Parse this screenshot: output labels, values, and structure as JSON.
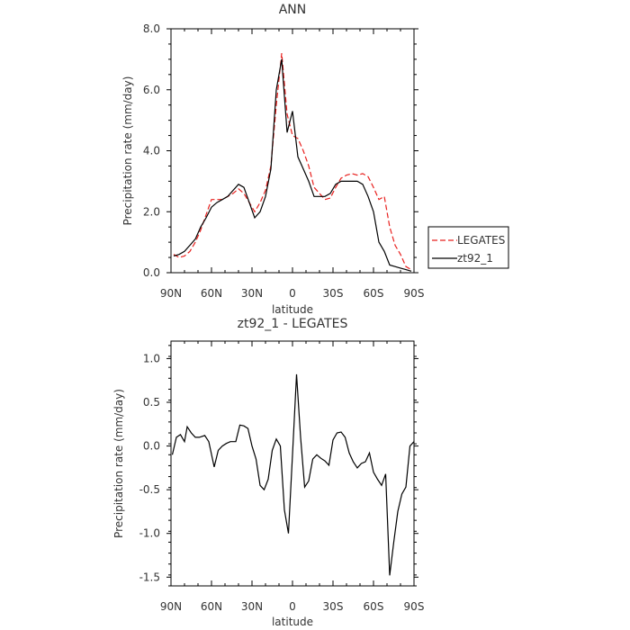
{
  "chart_data": [
    {
      "type": "line",
      "title": "ANN",
      "xlabel": "latitude",
      "ylabel": "Precipitation rate (mm/day)",
      "xlim": [
        90,
        -90
      ],
      "ylim": [
        0,
        8
      ],
      "xticks": [
        90,
        60,
        30,
        0,
        -30,
        -60,
        -90
      ],
      "xtick_labels": [
        "90N",
        "60N",
        "30N",
        "0",
        "30S",
        "60S",
        "90S"
      ],
      "yticks": [
        0,
        2,
        4,
        6,
        8
      ],
      "ytick_labels": [
        "0.0",
        "2.0",
        "4.0",
        "6.0",
        "8.0"
      ],
      "legend": "right",
      "series": [
        {
          "name": "LEGATES",
          "color": "#e8201e",
          "dash": "dashed",
          "x": [
            88,
            84,
            80,
            76,
            72,
            68,
            64,
            60,
            56,
            52,
            48,
            44,
            40,
            36,
            32,
            28,
            24,
            20,
            16,
            12,
            8,
            4,
            0,
            -4,
            -8,
            -12,
            -16,
            -20,
            -24,
            -28,
            -32,
            -36,
            -40,
            -44,
            -48,
            -52,
            -56,
            -60,
            -64,
            -68,
            -72,
            -76,
            -80,
            -84,
            -88
          ],
          "values": [
            0.6,
            0.5,
            0.55,
            0.7,
            1.0,
            1.4,
            1.9,
            2.4,
            2.4,
            2.4,
            2.5,
            2.6,
            2.75,
            2.6,
            2.3,
            2.0,
            2.3,
            2.7,
            3.5,
            5.5,
            7.2,
            5.2,
            4.5,
            4.4,
            4.0,
            3.5,
            2.8,
            2.6,
            2.4,
            2.45,
            2.8,
            3.1,
            3.2,
            3.25,
            3.2,
            3.25,
            3.15,
            2.8,
            2.4,
            2.5,
            1.5,
            0.9,
            0.6,
            0.2,
            0.1
          ]
        },
        {
          "name": "zt92_1",
          "color": "#000000",
          "dash": "solid",
          "x": [
            88,
            84,
            80,
            76,
            72,
            68,
            64,
            60,
            56,
            52,
            48,
            44,
            40,
            36,
            32,
            28,
            24,
            20,
            16,
            12,
            8,
            4,
            0,
            -4,
            -8,
            -12,
            -16,
            -20,
            -24,
            -28,
            -32,
            -36,
            -40,
            -44,
            -48,
            -52,
            -56,
            -60,
            -64,
            -68,
            -72,
            -76,
            -80,
            -84,
            -88
          ],
          "values": [
            0.55,
            0.6,
            0.7,
            0.9,
            1.1,
            1.5,
            1.8,
            2.15,
            2.3,
            2.4,
            2.5,
            2.7,
            2.9,
            2.8,
            2.3,
            1.8,
            2.0,
            2.5,
            3.4,
            6.0,
            7.0,
            4.6,
            5.3,
            3.8,
            3.4,
            3.0,
            2.5,
            2.5,
            2.5,
            2.6,
            2.9,
            3.0,
            3.0,
            3.0,
            3.0,
            2.9,
            2.5,
            2.0,
            1.0,
            0.7,
            0.25,
            0.2,
            0.15,
            0.1,
            0.05
          ]
        }
      ]
    },
    {
      "type": "line",
      "title": "zt92_1 - LEGATES",
      "xlabel": "latitude",
      "ylabel": "Precipitation rate (mm/day)",
      "xlim": [
        90,
        -90
      ],
      "ylim": [
        -1.6,
        1.2
      ],
      "xticks": [
        90,
        60,
        30,
        0,
        -30,
        -60,
        -90
      ],
      "xtick_labels": [
        "90N",
        "60N",
        "30N",
        "0",
        "30S",
        "60S",
        "90S"
      ],
      "yticks": [
        -1.5,
        -1.0,
        -0.5,
        0,
        0.5,
        1.0
      ],
      "ytick_labels": [
        "-1.5",
        "-1.0",
        "-0.5",
        "0.0",
        "0.5",
        "1.0"
      ],
      "series": [
        {
          "color": "#000000",
          "x": [
            89,
            86,
            83,
            80,
            78,
            75,
            72,
            69,
            65,
            62,
            58,
            55,
            52,
            49,
            46,
            42,
            39,
            36,
            33,
            30,
            27,
            24,
            21,
            18,
            15,
            12,
            9,
            6,
            3,
            0,
            -3,
            -6,
            -9,
            -12,
            -15,
            -18,
            -21,
            -24,
            -27,
            -30,
            -33,
            -36,
            -39,
            -42,
            -45,
            -48,
            -51,
            -54,
            -57,
            -60,
            -63,
            -66,
            -69,
            -72,
            -75,
            -78,
            -81,
            -84,
            -87,
            -90
          ],
          "values": [
            -0.1,
            0.1,
            0.13,
            0.05,
            0.22,
            0.15,
            0.1,
            0.1,
            0.12,
            0.05,
            -0.24,
            -0.05,
            0.0,
            0.03,
            0.05,
            0.05,
            0.24,
            0.23,
            0.2,
            0.0,
            -0.15,
            -0.45,
            -0.5,
            -0.38,
            -0.05,
            0.08,
            0.0,
            -0.73,
            -1.0,
            -0.1,
            0.82,
            0.1,
            -0.47,
            -0.4,
            -0.15,
            -0.1,
            -0.14,
            -0.17,
            -0.22,
            0.07,
            0.15,
            0.16,
            0.1,
            -0.08,
            -0.18,
            -0.25,
            -0.2,
            -0.18,
            -0.08,
            -0.3,
            -0.38,
            -0.45,
            -0.32,
            -1.48,
            -1.1,
            -0.75,
            -0.55,
            -0.47,
            0.0,
            0.05
          ]
        }
      ]
    }
  ]
}
